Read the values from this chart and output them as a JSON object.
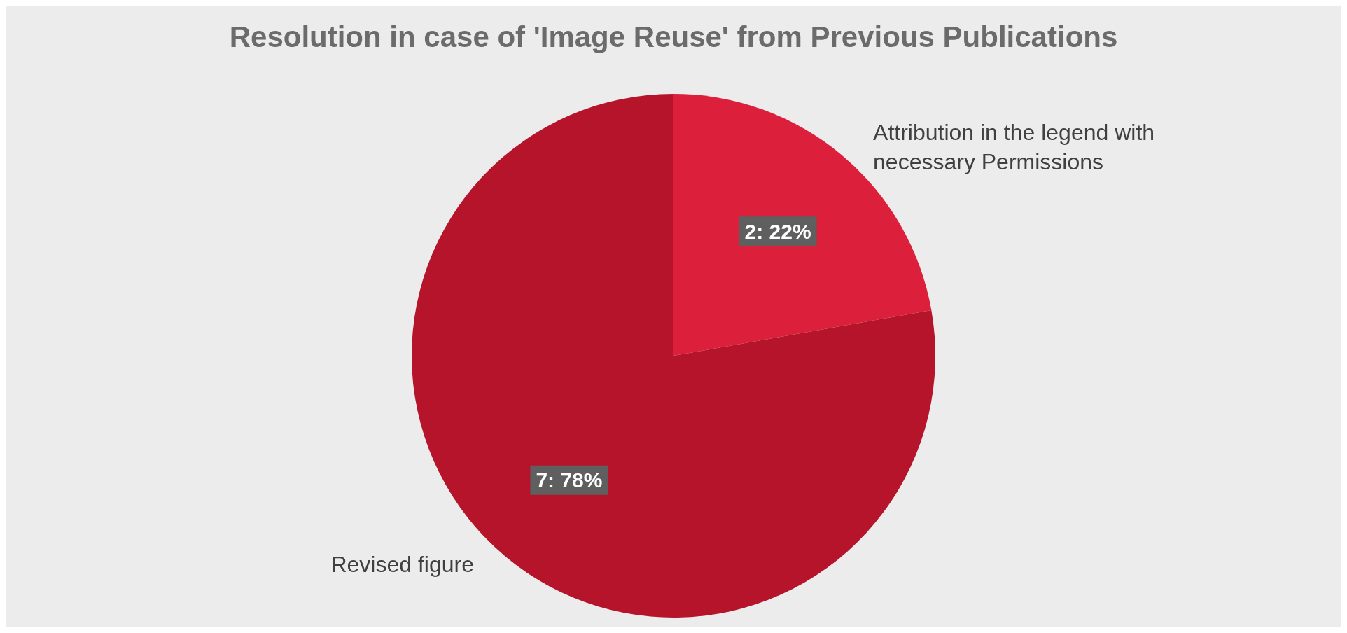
{
  "chart_data": {
    "type": "pie",
    "title": "Resolution in case of 'Image Reuse' from Previous Publications",
    "categories": [
      "Attribution in the legend with necessary Permissions",
      "Revised figure"
    ],
    "values": [
      2,
      7
    ],
    "colors": [
      "#dc1f3a",
      "#b5142b"
    ],
    "value_labels": [
      "2: 22%",
      "7: 78%"
    ],
    "legend": false
  }
}
